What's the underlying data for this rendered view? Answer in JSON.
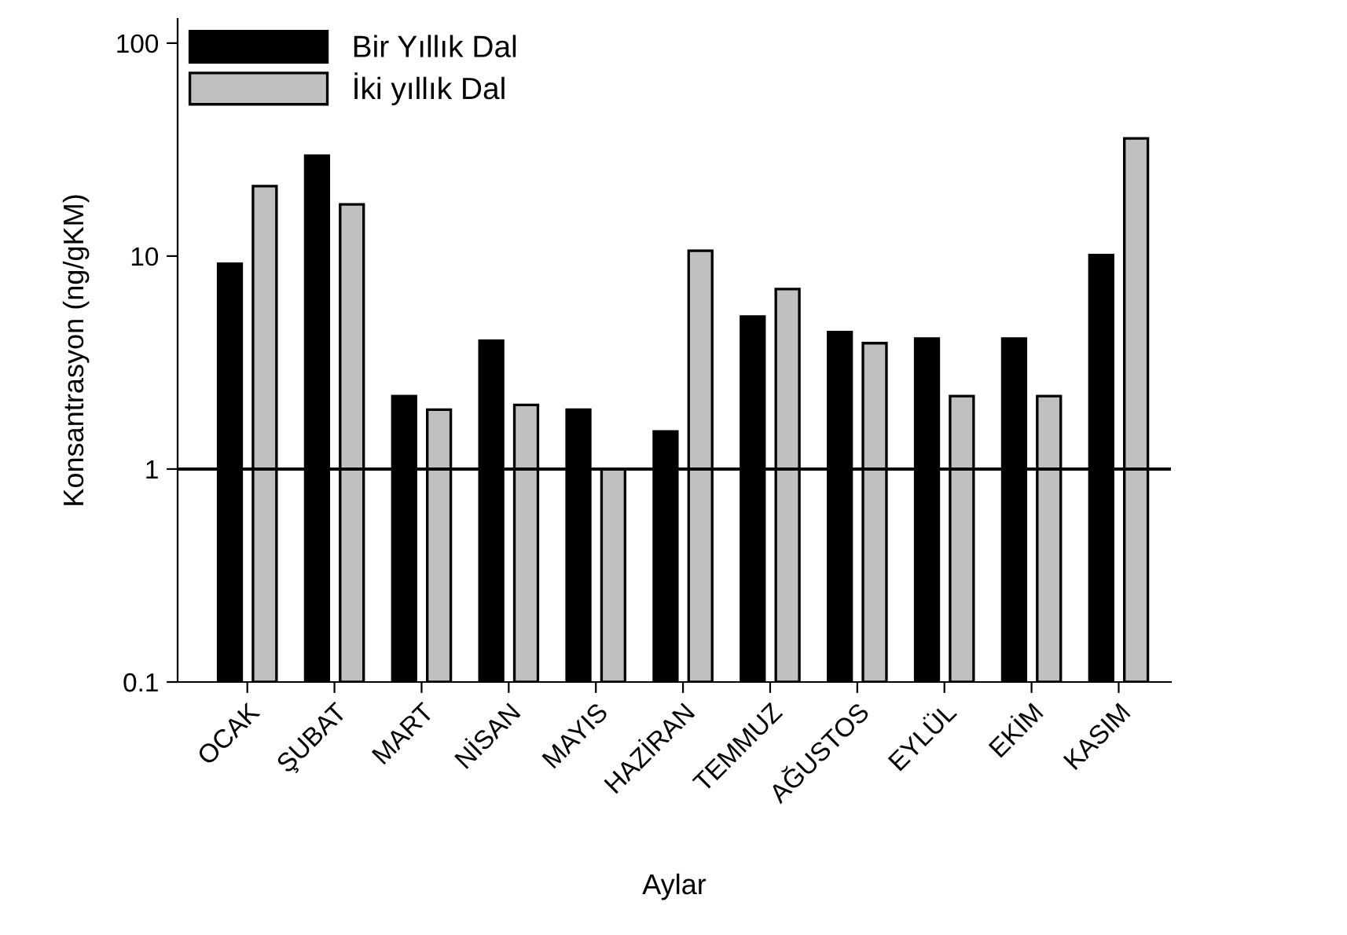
{
  "chart_data": {
    "type": "bar",
    "xlabel": "Aylar",
    "ylabel": "Konsantrasyon (ng/gKM)",
    "categories": [
      "OCAK",
      "ŞUBAT",
      "MART",
      "NİSAN",
      "MAYIS",
      "HAZİRAN",
      "TEMMUZ",
      "AĞUSTOS",
      "EYLÜL",
      "EKİM",
      "KASIM"
    ],
    "series": [
      {
        "name": "Bir Yıllık Dal",
        "color": "#000000",
        "values": [
          9.2,
          29.6,
          2.2,
          4.0,
          1.9,
          1.5,
          5.2,
          4.4,
          4.1,
          4.1,
          10.1
        ]
      },
      {
        "name": "İki yıllık Dal",
        "color": "#c0c0c0",
        "values": [
          21.3,
          17.5,
          1.9,
          2.0,
          1.0,
          10.6,
          7.0,
          3.9,
          2.2,
          2.2,
          35.7
        ]
      }
    ],
    "log": true,
    "ylim": [
      0.1,
      130
    ],
    "yticks": [
      0.1,
      1,
      10,
      100
    ],
    "ref_lines": [
      {
        "axis": "y",
        "value": 1,
        "color": "#000000"
      }
    ],
    "legend": "top left",
    "grid": false
  }
}
